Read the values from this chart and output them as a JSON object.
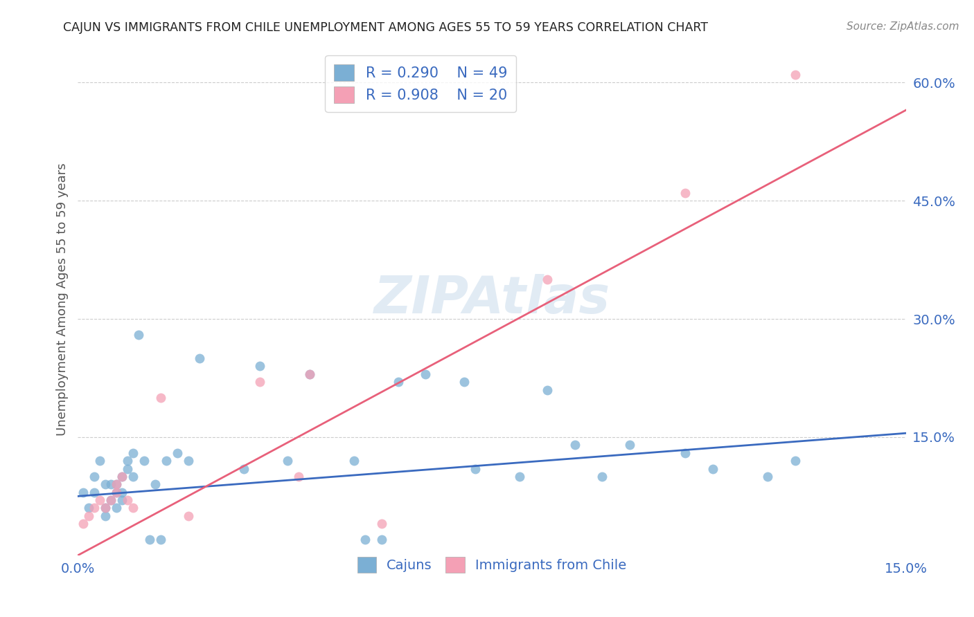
{
  "title": "CAJUN VS IMMIGRANTS FROM CHILE UNEMPLOYMENT AMONG AGES 55 TO 59 YEARS CORRELATION CHART",
  "source": "Source: ZipAtlas.com",
  "ylabel": "Unemployment Among Ages 55 to 59 years",
  "watermark": "ZIPAtlas",
  "xlim": [
    0.0,
    0.15
  ],
  "ylim": [
    0.0,
    0.65
  ],
  "xticks": [
    0.0,
    0.15
  ],
  "xticklabels": [
    "0.0%",
    "15.0%"
  ],
  "yticks_right": [
    0.15,
    0.3,
    0.45,
    0.6
  ],
  "yticklabels_right": [
    "15.0%",
    "30.0%",
    "45.0%",
    "60.0%"
  ],
  "cajun_color": "#7bafd4",
  "chile_color": "#f4a0b5",
  "cajun_line_color": "#3a6abf",
  "chile_line_color": "#e8607a",
  "legend_R_cajun": "R = 0.290",
  "legend_N_cajun": "N = 49",
  "legend_R_chile": "R = 0.908",
  "legend_N_chile": "N = 20",
  "cajun_x": [
    0.001,
    0.002,
    0.003,
    0.003,
    0.004,
    0.005,
    0.005,
    0.005,
    0.006,
    0.006,
    0.007,
    0.007,
    0.007,
    0.008,
    0.008,
    0.008,
    0.009,
    0.009,
    0.01,
    0.01,
    0.011,
    0.012,
    0.013,
    0.014,
    0.015,
    0.016,
    0.018,
    0.02,
    0.022,
    0.03,
    0.033,
    0.038,
    0.042,
    0.05,
    0.052,
    0.055,
    0.058,
    0.063,
    0.07,
    0.072,
    0.08,
    0.085,
    0.09,
    0.095,
    0.1,
    0.11,
    0.115,
    0.125,
    0.13
  ],
  "cajun_y": [
    0.08,
    0.06,
    0.08,
    0.1,
    0.12,
    0.05,
    0.06,
    0.09,
    0.07,
    0.09,
    0.06,
    0.08,
    0.09,
    0.07,
    0.08,
    0.1,
    0.11,
    0.12,
    0.1,
    0.13,
    0.28,
    0.12,
    0.02,
    0.09,
    0.02,
    0.12,
    0.13,
    0.12,
    0.25,
    0.11,
    0.24,
    0.12,
    0.23,
    0.12,
    0.02,
    0.02,
    0.22,
    0.23,
    0.22,
    0.11,
    0.1,
    0.21,
    0.14,
    0.1,
    0.14,
    0.13,
    0.11,
    0.1,
    0.12
  ],
  "chile_x": [
    0.001,
    0.002,
    0.003,
    0.004,
    0.005,
    0.006,
    0.007,
    0.007,
    0.008,
    0.009,
    0.01,
    0.015,
    0.02,
    0.033,
    0.04,
    0.042,
    0.055,
    0.085,
    0.11,
    0.13
  ],
  "chile_y": [
    0.04,
    0.05,
    0.06,
    0.07,
    0.06,
    0.07,
    0.08,
    0.09,
    0.1,
    0.07,
    0.06,
    0.2,
    0.05,
    0.22,
    0.1,
    0.23,
    0.04,
    0.35,
    0.46,
    0.61
  ],
  "cajun_line_x0": 0.0,
  "cajun_line_x1": 0.15,
  "cajun_line_y0": 0.075,
  "cajun_line_y1": 0.155,
  "chile_line_x0": 0.0,
  "chile_line_x1": 0.15,
  "chile_line_y0": 0.0,
  "chile_line_y1": 0.565,
  "background_color": "#ffffff",
  "grid_color": "#cccccc",
  "title_color": "#222222",
  "axis_label_color": "#555555",
  "right_tick_color": "#3a6abf",
  "bottom_tick_color": "#3a6abf"
}
